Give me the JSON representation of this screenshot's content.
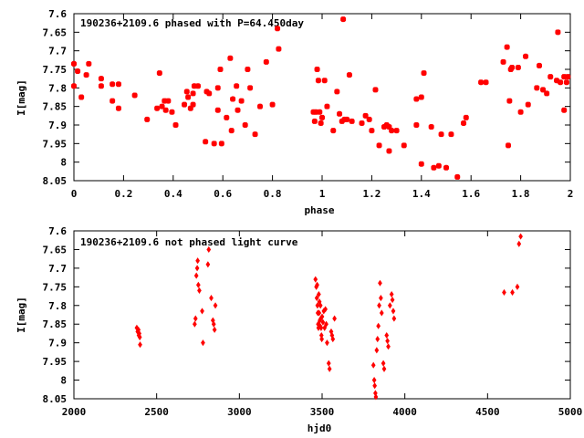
{
  "chart_data": [
    {
      "type": "scatter",
      "title": "190236+2109.6 phased with P=64.450day",
      "xlabel": "phase",
      "ylabel": "I[mag]",
      "xlim": [
        0,
        2
      ],
      "ylim": [
        8.05,
        7.6
      ],
      "y_inverted": true,
      "grid": false,
      "marker": "star",
      "color": "#ff0000",
      "x_ticks": [
        0,
        0.2,
        0.4,
        0.6,
        0.8,
        1,
        1.2,
        1.4,
        1.6,
        1.8,
        2
      ],
      "x_tick_labels": [
        "0",
        "0.2",
        "0.4",
        "0.6",
        "0.8",
        "1",
        "1.2",
        "1.4",
        "1.6",
        "1.8",
        "2"
      ],
      "y_ticks": [
        7.6,
        7.65,
        7.7,
        7.75,
        7.8,
        7.85,
        7.9,
        7.95,
        8,
        8.05
      ],
      "y_tick_labels": [
        "7.6",
        "7.65",
        "7.7",
        "7.75",
        "7.8",
        "7.85",
        "7.9",
        "7.95",
        "8",
        "8.05"
      ],
      "points": [
        [
          0.0,
          7.735
        ],
        [
          0.0,
          7.795
        ],
        [
          0.015,
          7.755
        ],
        [
          0.03,
          7.825
        ],
        [
          0.05,
          7.765
        ],
        [
          0.06,
          7.735
        ],
        [
          0.11,
          7.775
        ],
        [
          0.11,
          7.795
        ],
        [
          0.155,
          7.79
        ],
        [
          0.155,
          7.835
        ],
        [
          0.18,
          7.79
        ],
        [
          0.18,
          7.855
        ],
        [
          0.245,
          7.82
        ],
        [
          0.295,
          7.885
        ],
        [
          0.335,
          7.855
        ],
        [
          0.345,
          7.76
        ],
        [
          0.355,
          7.85
        ],
        [
          0.365,
          7.835
        ],
        [
          0.37,
          7.86
        ],
        [
          0.38,
          7.835
        ],
        [
          0.395,
          7.865
        ],
        [
          0.41,
          7.9
        ],
        [
          0.445,
          7.845
        ],
        [
          0.455,
          7.81
        ],
        [
          0.46,
          7.825
        ],
        [
          0.47,
          7.855
        ],
        [
          0.48,
          7.845
        ],
        [
          0.485,
          7.795
        ],
        [
          0.48,
          7.815
        ],
        [
          0.5,
          7.795
        ],
        [
          0.53,
          7.945
        ],
        [
          0.535,
          7.81
        ],
        [
          0.545,
          7.815
        ],
        [
          0.565,
          7.95
        ],
        [
          0.58,
          7.8
        ],
        [
          0.58,
          7.86
        ],
        [
          0.59,
          7.75
        ],
        [
          0.595,
          7.95
        ],
        [
          0.615,
          7.88
        ],
        [
          0.63,
          7.72
        ],
        [
          0.635,
          7.915
        ],
        [
          0.64,
          7.83
        ],
        [
          0.655,
          7.795
        ],
        [
          0.66,
          7.86
        ],
        [
          0.675,
          7.835
        ],
        [
          0.69,
          7.9
        ],
        [
          0.7,
          7.75
        ],
        [
          0.71,
          7.8
        ],
        [
          0.73,
          7.925
        ],
        [
          0.75,
          7.85
        ],
        [
          0.775,
          7.73
        ],
        [
          0.8,
          7.845
        ],
        [
          0.82,
          7.64
        ],
        [
          0.825,
          7.695
        ],
        [
          0.965,
          7.865
        ],
        [
          0.97,
          7.89
        ],
        [
          0.975,
          7.865
        ],
        [
          0.98,
          7.75
        ],
        [
          0.985,
          7.78
        ],
        [
          0.99,
          7.865
        ],
        [
          0.995,
          7.895
        ],
        [
          1.0,
          7.88
        ],
        [
          1.01,
          7.78
        ],
        [
          1.02,
          7.85
        ],
        [
          1.045,
          7.915
        ],
        [
          1.06,
          7.81
        ],
        [
          1.07,
          7.87
        ],
        [
          1.08,
          7.89
        ],
        [
          1.085,
          7.615
        ],
        [
          1.09,
          7.885
        ],
        [
          1.1,
          7.885
        ],
        [
          1.11,
          7.765
        ],
        [
          1.12,
          7.89
        ],
        [
          1.16,
          7.895
        ],
        [
          1.175,
          7.875
        ],
        [
          1.19,
          7.885
        ],
        [
          1.2,
          7.915
        ],
        [
          1.215,
          7.805
        ],
        [
          1.23,
          7.955
        ],
        [
          1.25,
          7.905
        ],
        [
          1.26,
          7.9
        ],
        [
          1.27,
          7.905
        ],
        [
          1.27,
          7.97
        ],
        [
          1.28,
          7.915
        ],
        [
          1.3,
          7.915
        ],
        [
          1.33,
          7.955
        ],
        [
          1.38,
          7.83
        ],
        [
          1.38,
          7.9
        ],
        [
          1.4,
          7.825
        ],
        [
          1.4,
          8.005
        ],
        [
          1.41,
          7.76
        ],
        [
          1.44,
          7.905
        ],
        [
          1.45,
          8.015
        ],
        [
          1.47,
          8.01
        ],
        [
          1.48,
          7.925
        ],
        [
          1.5,
          8.015
        ],
        [
          1.52,
          7.925
        ],
        [
          1.545,
          8.04
        ],
        [
          1.57,
          7.895
        ],
        [
          1.58,
          7.88
        ],
        [
          1.64,
          7.785
        ],
        [
          1.66,
          7.785
        ],
        [
          1.73,
          7.73
        ],
        [
          1.745,
          7.69
        ],
        [
          1.75,
          7.955
        ],
        [
          1.755,
          7.835
        ],
        [
          1.76,
          7.75
        ],
        [
          1.765,
          7.745
        ],
        [
          1.79,
          7.745
        ],
        [
          1.8,
          7.865
        ],
        [
          1.82,
          7.715
        ],
        [
          1.83,
          7.845
        ],
        [
          1.865,
          7.8
        ],
        [
          1.875,
          7.74
        ],
        [
          1.89,
          7.805
        ],
        [
          1.905,
          7.815
        ],
        [
          1.92,
          7.77
        ],
        [
          1.945,
          7.78
        ],
        [
          1.95,
          7.65
        ],
        [
          1.96,
          7.785
        ],
        [
          1.975,
          7.77
        ],
        [
          1.975,
          7.86
        ],
        [
          1.985,
          7.785
        ],
        [
          1.99,
          7.77
        ]
      ]
    },
    {
      "type": "scatter",
      "title": "190236+2109.6 not phased light curve",
      "xlabel": "hjd0",
      "ylabel": "I[mag]",
      "xlim": [
        2000,
        5000
      ],
      "ylim": [
        8.05,
        7.6
      ],
      "y_inverted": true,
      "grid": false,
      "marker": "diamond",
      "color": "#ff0000",
      "x_ticks": [
        2000,
        2500,
        3000,
        3500,
        4000,
        4500,
        5000
      ],
      "x_tick_labels": [
        "2000",
        "2500",
        "3000",
        "3500",
        "4000",
        "4500",
        "5000"
      ],
      "y_ticks": [
        7.6,
        7.65,
        7.7,
        7.75,
        7.8,
        7.85,
        7.9,
        7.95,
        8,
        8.05
      ],
      "y_tick_labels": [
        "7.6",
        "7.65",
        "7.7",
        "7.75",
        "7.8",
        "7.85",
        "7.9",
        "7.95",
        "8",
        "8.05"
      ],
      "points": [
        [
          2380,
          7.86
        ],
        [
          2385,
          7.87
        ],
        [
          2390,
          7.865
        ],
        [
          2392,
          7.88
        ],
        [
          2395,
          7.875
        ],
        [
          2398,
          7.885
        ],
        [
          2400,
          7.905
        ],
        [
          2730,
          7.85
        ],
        [
          2735,
          7.835
        ],
        [
          2740,
          7.72
        ],
        [
          2745,
          7.7
        ],
        [
          2748,
          7.68
        ],
        [
          2752,
          7.745
        ],
        [
          2758,
          7.76
        ],
        [
          2775,
          7.815
        ],
        [
          2780,
          7.9
        ],
        [
          2810,
          7.69
        ],
        [
          2815,
          7.65
        ],
        [
          2830,
          7.78
        ],
        [
          2840,
          7.84
        ],
        [
          2845,
          7.85
        ],
        [
          2850,
          7.865
        ],
        [
          2855,
          7.8
        ],
        [
          3460,
          7.73
        ],
        [
          3465,
          7.75
        ],
        [
          3468,
          7.78
        ],
        [
          3470,
          7.745
        ],
        [
          3472,
          7.8
        ],
        [
          3474,
          7.82
        ],
        [
          3476,
          7.85
        ],
        [
          3478,
          7.86
        ],
        [
          3480,
          7.77
        ],
        [
          3482,
          7.82
        ],
        [
          3484,
          7.79
        ],
        [
          3486,
          7.84
        ],
        [
          3488,
          7.855
        ],
        [
          3490,
          7.8
        ],
        [
          3492,
          7.835
        ],
        [
          3494,
          7.86
        ],
        [
          3496,
          7.88
        ],
        [
          3498,
          7.89
        ],
        [
          3500,
          7.83
        ],
        [
          3505,
          7.845
        ],
        [
          3510,
          7.815
        ],
        [
          3515,
          7.86
        ],
        [
          3520,
          7.81
        ],
        [
          3525,
          7.85
        ],
        [
          3530,
          7.9
        ],
        [
          3540,
          7.955
        ],
        [
          3545,
          7.97
        ],
        [
          3555,
          7.87
        ],
        [
          3560,
          7.88
        ],
        [
          3565,
          7.89
        ],
        [
          3575,
          7.835
        ],
        [
          3810,
          7.96
        ],
        [
          3815,
          8.0
        ],
        [
          3818,
          8.015
        ],
        [
          3822,
          8.035
        ],
        [
          3825,
          8.045
        ],
        [
          3830,
          7.92
        ],
        [
          3835,
          7.89
        ],
        [
          3840,
          7.855
        ],
        [
          3845,
          7.8
        ],
        [
          3850,
          7.74
        ],
        [
          3855,
          7.78
        ],
        [
          3860,
          7.82
        ],
        [
          3870,
          7.955
        ],
        [
          3875,
          7.97
        ],
        [
          3890,
          7.88
        ],
        [
          3895,
          7.895
        ],
        [
          3900,
          7.91
        ],
        [
          3910,
          7.8
        ],
        [
          3920,
          7.77
        ],
        [
          3925,
          7.785
        ],
        [
          3930,
          7.815
        ],
        [
          3935,
          7.835
        ],
        [
          4600,
          7.765
        ],
        [
          4650,
          7.765
        ],
        [
          4680,
          7.75
        ],
        [
          4690,
          7.635
        ],
        [
          4700,
          7.615
        ]
      ]
    }
  ]
}
